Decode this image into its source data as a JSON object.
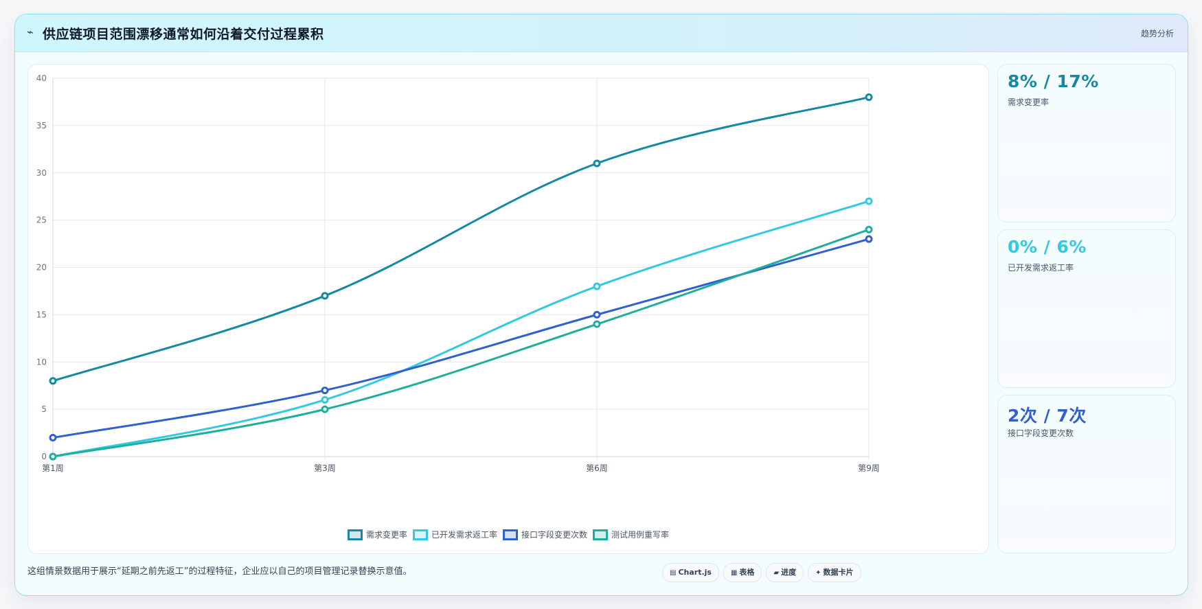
{
  "header": {
    "icon": "lightning-icon",
    "icon_glyph": "⌁",
    "title": "供应链项目范围漂移通常如何沿着交付过程累积",
    "tag": "趋势分析"
  },
  "chart_data": {
    "type": "line",
    "categories": [
      "第1周",
      "第3周",
      "第6周",
      "第9周"
    ],
    "y_ticks": [
      "0",
      "5",
      "10",
      "15",
      "20",
      "25",
      "30",
      "35",
      "40"
    ],
    "ylim": [
      0,
      40
    ],
    "grid": true,
    "legend_position": "bottom",
    "series": [
      {
        "name": "需求变更率",
        "values": [
          8,
          17,
          31,
          38
        ],
        "color": "#1589a3"
      },
      {
        "name": "已开发需求返工率",
        "values": [
          0,
          6,
          18,
          27
        ],
        "color": "#33c9e0"
      },
      {
        "name": "接口字段变更次数",
        "values": [
          2,
          7,
          15,
          23
        ],
        "color": "#2f5fd0"
      },
      {
        "name": "测试用例重写率",
        "values": [
          0,
          5,
          14,
          24
        ],
        "color": "#1fae9e"
      }
    ]
  },
  "stats": [
    {
      "value": "8% / 17%",
      "label": "需求变更率",
      "color": "#1589a3"
    },
    {
      "value": "0% / 6%",
      "label": "已开发需求返工率",
      "color": "#33c9e0"
    },
    {
      "value": "2次 / 7次",
      "label": "接口字段变更次数",
      "color": "#2f5fd0"
    }
  ],
  "footnote": "这组情景数据用于展示“延期之前先返工”的过程特征，企业应以自己的项目管理记录替换示意值。",
  "buttons": [
    {
      "label": "Chart.js",
      "icon": "chart-icon",
      "glyph": "▤"
    },
    {
      "label": "表格",
      "icon": "table-icon",
      "glyph": "▦"
    },
    {
      "label": "进度",
      "icon": "progress-icon",
      "glyph": "▰"
    },
    {
      "label": "数据卡片",
      "icon": "sparkle-icon",
      "glyph": "✦"
    }
  ]
}
